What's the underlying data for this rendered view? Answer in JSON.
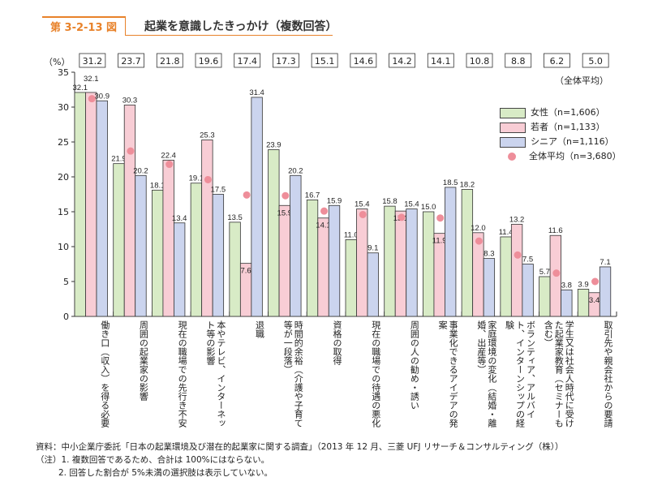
{
  "header": {
    "figure_number": "第 3-2-13 図",
    "title": "起業を意識したきっかけ（複数回答）"
  },
  "colors": {
    "accent": "#e8822a",
    "female": "#d8ebc6",
    "young": "#f8cdd5",
    "senior": "#cbd4ee",
    "average": "#ee8e9a"
  },
  "chart_data": {
    "type": "bar",
    "title": "起業を意識したきっかけ（複数回答）",
    "ylabel": "（%）",
    "ylim": [
      0,
      35
    ],
    "yticks": [
      0,
      5,
      10,
      15,
      20,
      25,
      30,
      35
    ],
    "grid": false,
    "legend_position": "right",
    "categories": [
      "働き口（収入）を得る必要",
      "周囲の起業家の影響",
      "現在の職場での先行き不安",
      "本やテレビ、インターネット等の影響",
      "退職",
      "時間的余裕（介護や子育て等が一段落）",
      "資格の取得",
      "現在の職場での待遇の悪化",
      "周囲の人の勧め・誘い",
      "事業化できるアイデアの発案",
      "家庭環境の変化（結婚・離婚、出産等）",
      "ボランティア、アルバイト、インターンシップの経験",
      "学生又は社会人時代に受けた起業家教育（セミナーも含む）",
      "取引先や親会社からの要請"
    ],
    "series": [
      {
        "name": "女性（n=1,606）",
        "values": [
          32.1,
          21.9,
          18.1,
          19.1,
          13.5,
          23.9,
          16.7,
          11.0,
          15.8,
          15.0,
          18.2,
          11.4,
          5.7,
          3.9
        ]
      },
      {
        "name": "若者（n=1,133）",
        "values": [
          32.1,
          30.3,
          22.4,
          25.3,
          7.6,
          15.9,
          14.1,
          15.4,
          15.1,
          11.9,
          12.0,
          13.2,
          11.6,
          3.4
        ]
      },
      {
        "name": "シニア（n=1,116）",
        "values": [
          30.9,
          20.2,
          13.4,
          17.5,
          31.4,
          20.2,
          15.9,
          9.1,
          15.4,
          18.5,
          8.3,
          7.5,
          3.8,
          7.1
        ]
      }
    ],
    "average": {
      "name": "全体平均（n=3,680）",
      "label": "（全体平均）",
      "values": [
        31.2,
        23.7,
        21.8,
        19.6,
        17.4,
        17.3,
        15.1,
        14.6,
        14.2,
        14.1,
        10.8,
        8.8,
        6.2,
        5.0
      ]
    }
  },
  "notes": {
    "source": "資料：中小企業庁委託「日本の起業環境及び潜在的起業家に関する調査」（2013 年 12 月、三菱 UFJ リサーチ＆コンサルティング（株））",
    "note1": "（注）1. 複数回答であるため、合計は 100%にはならない。",
    "note2": "2. 回答した割合が 5%未満の選択肢は表示していない。"
  }
}
